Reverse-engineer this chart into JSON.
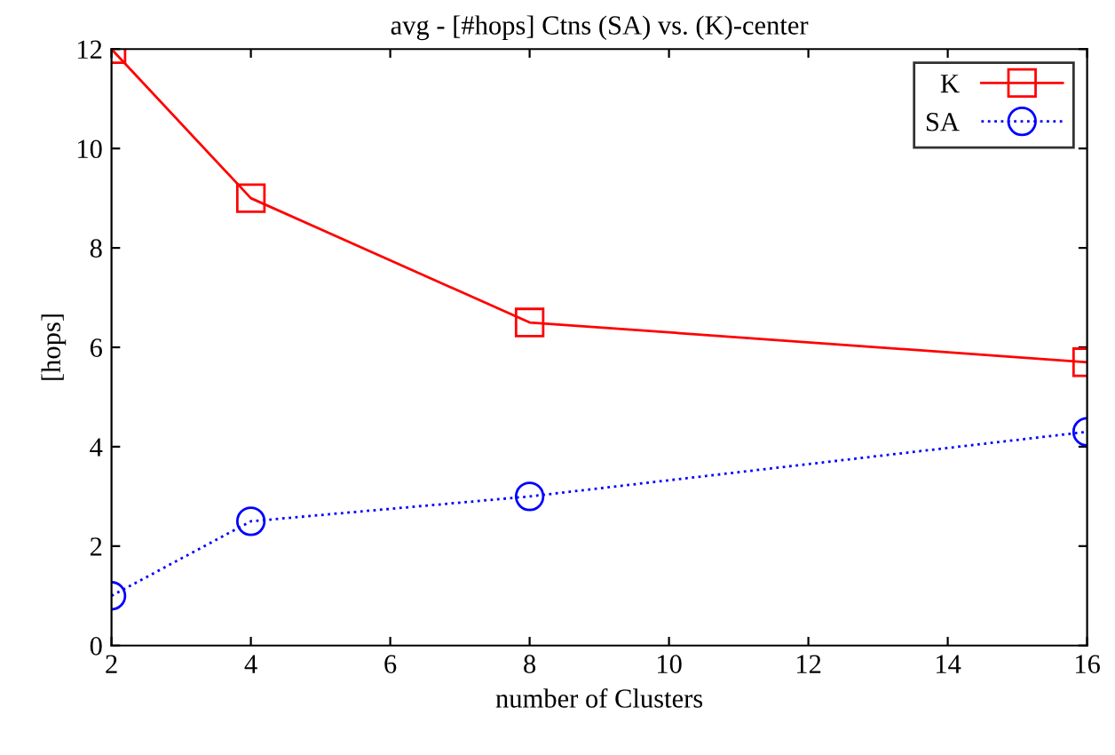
{
  "chart_data": {
    "type": "line",
    "title": "avg - [#hops] Ctns (SA) vs. (K)-center",
    "xlabel": "number of Clusters",
    "ylabel": "[hops]",
    "x": [
      2,
      4,
      8,
      16
    ],
    "series": [
      {
        "name": "K",
        "color": "#ff0000",
        "values": [
          12,
          9,
          6.5,
          5.7
        ],
        "marker": "square",
        "line_style": "solid"
      },
      {
        "name": "SA",
        "color": "#0000ff",
        "values": [
          1,
          2.5,
          3,
          4.3
        ],
        "marker": "circle",
        "line_style": "dotted"
      }
    ],
    "xlim": [
      2,
      16
    ],
    "xticks": [
      2,
      4,
      6,
      8,
      10,
      12,
      14,
      16
    ],
    "ylim": [
      0,
      12
    ],
    "yticks": [
      0,
      2,
      4,
      6,
      8,
      10,
      12
    ],
    "grid": false,
    "legend": "top right"
  }
}
